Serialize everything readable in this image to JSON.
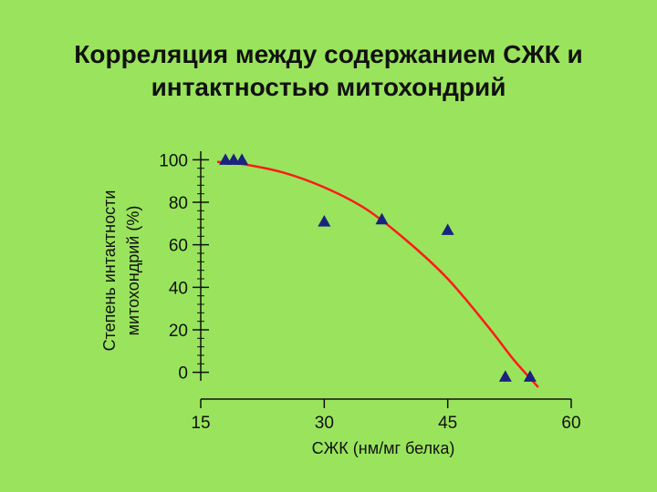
{
  "slide": {
    "title_line1": "Корреляция между содержанием СЖК и",
    "title_line2": "интактностью митохондрий"
  },
  "colors": {
    "background": "#99e45c",
    "marker": "#1a237e",
    "trend_line": "#ff1a1a",
    "axis": "#111111"
  },
  "chart_data": {
    "type": "scatter",
    "title": "Корреляция между содержанием СЖК и интактностью митохондрий",
    "xlabel": "СЖК (нм/мг белка)",
    "ylabel_line1": "Степень интактности",
    "ylabel_line2": "митохондрий   (%)",
    "xlim": [
      15,
      60
    ],
    "ylim": [
      -4,
      104
    ],
    "x_ticks": [
      15,
      30,
      45,
      60
    ],
    "y_ticks": [
      0,
      20,
      40,
      60,
      80,
      100
    ],
    "x_tick_labels": [
      "15",
      "30",
      "45",
      "60"
    ],
    "y_tick_labels": [
      "0",
      "20",
      "40",
      "60",
      "80",
      "100"
    ],
    "grid": false,
    "marker": "triangle",
    "series": [
      {
        "points": [
          {
            "x": 18,
            "y": 100
          },
          {
            "x": 19,
            "y": 100
          },
          {
            "x": 20,
            "y": 100
          },
          {
            "x": 30,
            "y": 71
          },
          {
            "x": 37,
            "y": 72
          },
          {
            "x": 45,
            "y": 67
          },
          {
            "x": 52,
            "y": -2
          },
          {
            "x": 55,
            "y": -2
          }
        ]
      }
    ],
    "trend_line": [
      {
        "x": 17,
        "y": 99
      },
      {
        "x": 20,
        "y": 98
      },
      {
        "x": 25,
        "y": 94
      },
      {
        "x": 30,
        "y": 87
      },
      {
        "x": 35,
        "y": 77
      },
      {
        "x": 40,
        "y": 62
      },
      {
        "x": 45,
        "y": 44
      },
      {
        "x": 50,
        "y": 21
      },
      {
        "x": 53,
        "y": 6
      },
      {
        "x": 56,
        "y": -7
      }
    ]
  }
}
